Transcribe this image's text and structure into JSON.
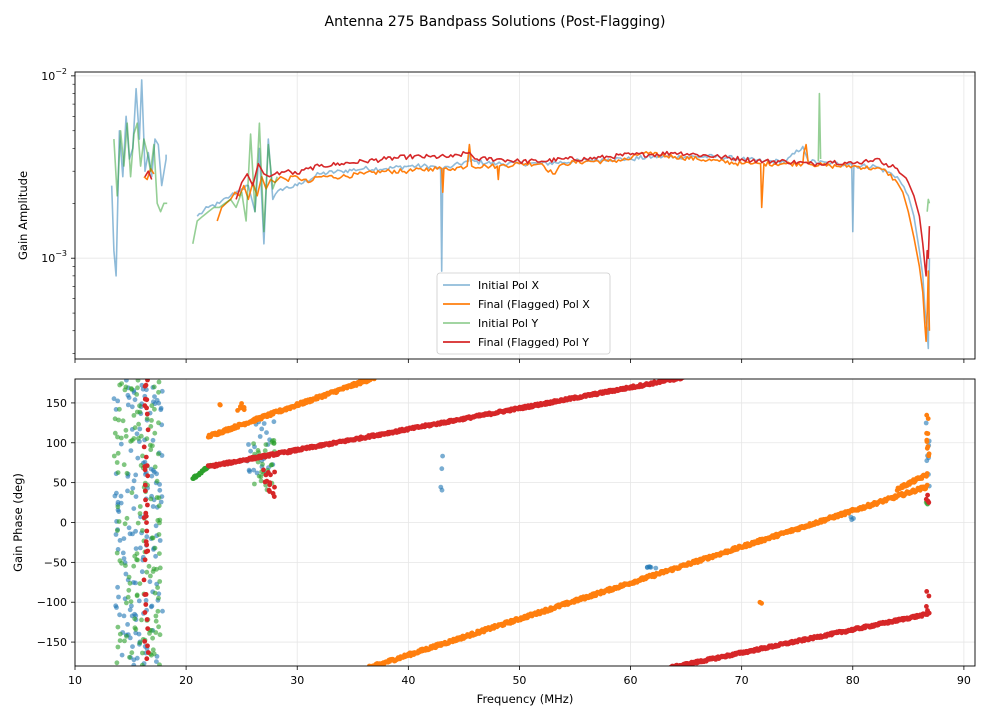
{
  "chart_data": {
    "type": "line",
    "title": "Antenna 275 Bandpass Solutions (Post-Flagging)",
    "xlabel": "Frequency (MHz)",
    "xlim": [
      10,
      91
    ],
    "xticks": [
      10,
      20,
      30,
      40,
      50,
      60,
      70,
      80,
      90
    ],
    "legend_position": "lower-center",
    "colors": {
      "initial_x": "#1f77b4",
      "final_x": "#ff7f0e",
      "initial_y": "#2ca02c",
      "final_y": "#d62728"
    },
    "amplitude": {
      "ylabel": "Gain Amplitude",
      "yscale": "log",
      "ylim": [
        0.00028,
        0.0105
      ],
      "yticks": [
        {
          "value": 0.001,
          "base": "10",
          "exp": "−3"
        },
        {
          "value": 0.01,
          "base": "10",
          "exp": "−2"
        }
      ],
      "series": [
        {
          "name": "Initial Pol X",
          "key": "initial_x",
          "alpha": 0.5,
          "x": [
            13.3,
            13.5,
            13.7,
            14.0,
            14.3,
            14.6,
            14.9,
            15.2,
            15.5,
            15.8,
            16.0,
            16.3,
            16.6,
            16.9,
            17.2,
            17.5,
            17.8,
            18.2,
            18.2,
            null,
            21.0,
            22.0,
            23.0,
            24.0,
            25.0,
            25.6,
            26.2,
            26.6,
            27.0,
            27.4,
            27.8,
            28.5,
            30,
            32,
            34,
            36,
            38,
            40,
            42,
            42.9,
            43,
            43.1,
            44,
            45.4,
            45.5,
            45.6,
            48,
            50,
            52,
            55,
            58,
            60,
            62,
            64,
            66,
            68,
            70,
            72,
            74,
            75.5,
            76,
            78,
            79.9,
            80,
            80.1,
            82,
            84,
            85,
            85.5,
            86,
            86.3,
            86.5,
            86.7,
            86.8,
            86.9
          ],
          "y": [
            0.0025,
            0.0011,
            0.0008,
            0.005,
            0.0028,
            0.006,
            0.0035,
            0.004,
            0.0085,
            0.0045,
            0.0095,
            0.003,
            0.0038,
            0.0028,
            0.0045,
            0.0042,
            0.0025,
            0.0035,
            0.0037,
            null,
            0.0017,
            0.0019,
            0.002,
            0.0022,
            0.0024,
            0.0025,
            0.0018,
            0.004,
            0.0012,
            0.0045,
            0.0021,
            0.0024,
            0.0025,
            0.0029,
            0.003,
            0.0031,
            0.0031,
            0.0032,
            0.0032,
            0.0031,
            0.00085,
            0.0031,
            0.0032,
            0.0034,
            0.0041,
            0.0034,
            0.0033,
            0.0033,
            0.0033,
            0.0034,
            0.0035,
            0.0035,
            0.0036,
            0.0036,
            0.0036,
            0.0036,
            0.0035,
            0.0034,
            0.0034,
            0.0041,
            0.0034,
            0.0033,
            0.0033,
            0.0014,
            0.0032,
            0.0032,
            0.0028,
            0.0022,
            0.0017,
            0.0011,
            0.0008,
            0.00052,
            0.0004,
            0.00032,
            0.001
          ]
        },
        {
          "name": "Final (Flagged) Pol X",
          "key": "final_x",
          "alpha": 1,
          "x": [
            16.2,
            16.5,
            16.8,
            17.1,
            null,
            22.8,
            23.2,
            23.6,
            24.0,
            24.4,
            24.8,
            25.2,
            25.6,
            26.0,
            26.4,
            26.8,
            27.2,
            27.6,
            28.0,
            28.5,
            29,
            30,
            31,
            32,
            34,
            36,
            38,
            40,
            42,
            43,
            43.1,
            43.2,
            44,
            45.3,
            45.5,
            45.7,
            47,
            48,
            48.1,
            48.2,
            50,
            52,
            53,
            54,
            56,
            58,
            60,
            61,
            62,
            64,
            66,
            68,
            70,
            71,
            71.7,
            71.8,
            72,
            74,
            75.5,
            75.6,
            75.8,
            76,
            78,
            80,
            82,
            83,
            84,
            84.5,
            85,
            85.5,
            86,
            86.3,
            86.5,
            86.6,
            86.7,
            86.8,
            86.9
          ],
          "y": [
            0.0028,
            0.0027,
            0.0031,
            0.0029,
            null,
            0.0016,
            0.0019,
            0.002,
            0.0021,
            0.0023,
            0.0022,
            0.0025,
            0.0021,
            0.0026,
            0.0022,
            0.0028,
            0.0024,
            0.0027,
            0.0026,
            0.0028,
            0.0027,
            0.0028,
            0.0026,
            0.0028,
            0.0028,
            0.0029,
            0.003,
            0.003,
            0.0031,
            0.0031,
            0.0023,
            0.0031,
            0.0031,
            0.0032,
            0.0042,
            0.0032,
            0.0032,
            0.0032,
            0.0027,
            0.0032,
            0.0033,
            0.0033,
            0.0029,
            0.0033,
            0.0034,
            0.0034,
            0.0035,
            0.0038,
            0.0037,
            0.0036,
            0.0035,
            0.0034,
            0.0033,
            0.0033,
            0.0033,
            0.0019,
            0.0033,
            0.0033,
            0.0033,
            0.0038,
            0.0042,
            0.0033,
            0.0032,
            0.0032,
            0.0031,
            0.003,
            0.0026,
            0.0023,
            0.0018,
            0.0013,
            0.0009,
            0.00065,
            0.00042,
            0.00035,
            0.0005,
            0.00085,
            0.0004
          ]
        },
        {
          "name": "Initial Pol Y",
          "key": "initial_y",
          "alpha": 0.5,
          "x": [
            13.5,
            13.8,
            14.1,
            14.4,
            14.7,
            15.0,
            15.3,
            15.6,
            15.9,
            16.2,
            16.5,
            16.8,
            17.1,
            17.4,
            17.7,
            18.0,
            18.3,
            null,
            20.6,
            21.0,
            21.5,
            22.0,
            22.5,
            23.0,
            23.5,
            24.0,
            24.5,
            25.0,
            25.4,
            25.8,
            26.2,
            26.6,
            27.0,
            27.4,
            27.8,
            28.2,
            null,
            76.9,
            77.0,
            77.1,
            null,
            86.7,
            86.8,
            86.9
          ],
          "y": [
            0.0045,
            0.0022,
            0.005,
            0.0032,
            0.0055,
            0.0028,
            0.0048,
            0.0055,
            0.0032,
            0.0045,
            0.0038,
            0.003,
            0.0042,
            0.002,
            0.0018,
            0.002,
            0.002,
            null,
            0.0012,
            0.0016,
            0.0017,
            0.0018,
            0.0019,
            0.0019,
            0.002,
            0.0021,
            0.0019,
            0.0023,
            0.0016,
            0.0048,
            0.0018,
            0.0055,
            0.0014,
            0.0042,
            0.0024,
            0.0028,
            null,
            0.0034,
            0.008,
            0.0035,
            null,
            0.0018,
            0.0021,
            0.002
          ]
        },
        {
          "name": "Final (Flagged) Pol Y",
          "key": "final_y",
          "alpha": 1,
          "x": [
            16.3,
            16.6,
            16.9,
            null,
            24.5,
            25.0,
            25.5,
            26.0,
            26.5,
            27.0,
            27.5,
            28.0,
            29,
            30,
            31,
            32,
            34,
            36,
            38,
            40,
            42,
            44,
            45.5,
            46,
            48,
            50,
            52,
            54,
            56,
            58,
            60,
            62,
            64,
            66,
            68,
            70,
            72,
            74,
            76,
            77,
            78,
            80,
            81,
            82,
            83,
            84,
            85,
            85.5,
            86,
            86.3,
            86.5,
            86.6,
            86.7,
            86.8,
            86.9
          ],
          "y": [
            0.0028,
            0.003,
            0.0027,
            null,
            0.0021,
            0.0026,
            0.0029,
            0.0025,
            0.0033,
            0.0029,
            0.0028,
            0.0029,
            0.003,
            0.0029,
            0.0031,
            0.0032,
            0.0033,
            0.0034,
            0.0035,
            0.0036,
            0.0036,
            0.0036,
            0.0038,
            0.0035,
            0.0035,
            0.0034,
            0.0034,
            0.0035,
            0.0035,
            0.0036,
            0.0037,
            0.0037,
            0.0038,
            0.0037,
            0.0036,
            0.0035,
            0.0034,
            0.0034,
            0.0033,
            0.0033,
            0.0034,
            0.0033,
            0.0034,
            0.0035,
            0.0033,
            0.0031,
            0.0026,
            0.0022,
            0.0017,
            0.0012,
            0.0009,
            0.0008,
            0.0011,
            0.001,
            0.0015
          ]
        }
      ]
    },
    "phase": {
      "ylabel": "Gain Phase (deg)",
      "ylim": [
        -180,
        180
      ],
      "yticks": [
        -150,
        -100,
        -50,
        0,
        50,
        100,
        150
      ],
      "series": [
        {
          "name": "Initial Pol X",
          "key": "initial_x",
          "segments": [
            {
              "x0": 13.5,
              "x1": 18.0,
              "y0": null,
              "y1": null,
              "scatter": true,
              "count": 160
            },
            {
              "x0": 25.5,
              "x1": 28.0,
              "y0": 60,
              "y1": 130,
              "scatter": true,
              "count": 25
            },
            {
              "x0": 42.9,
              "x1": 43.1,
              "y0": 36,
              "y1": 95,
              "scatter": true,
              "count": 4
            },
            {
              "x0": 61.5,
              "x1": 62.3,
              "y0": -58,
              "y1": -55,
              "scatter": true,
              "count": 6
            },
            {
              "x0": 79.8,
              "x1": 80.2,
              "y0": -8,
              "y1": 8,
              "scatter": true,
              "count": 3
            },
            {
              "x0": 86.6,
              "x1": 86.9,
              "y0": 25,
              "y1": 140,
              "scatter": true,
              "count": 8
            }
          ]
        },
        {
          "name": "Final (Flagged) Pol X",
          "key": "final_x",
          "segments": [
            {
              "x0": 22.0,
              "x1": 37.0,
              "y0": 108,
              "y1": 182,
              "noise": 4
            },
            {
              "x0": 36.5,
              "x1": 86.7,
              "y0": -182,
              "y1": 45,
              "noise": 4
            },
            {
              "x0": 84.0,
              "x1": 86.7,
              "y0": 42,
              "y1": 60,
              "noise": 4
            },
            {
              "x0": 23.0,
              "x1": 25.5,
              "y0": 140,
              "y1": 150,
              "scatter": true,
              "count": 8
            },
            {
              "x0": 71.6,
              "x1": 71.8,
              "y0": -102,
              "y1": -100,
              "scatter": true,
              "count": 2
            },
            {
              "x0": 86.6,
              "x1": 86.9,
              "y0": 60,
              "y1": 140,
              "scatter": true,
              "count": 10
            }
          ]
        },
        {
          "name": "Initial Pol Y",
          "key": "initial_y",
          "segments": [
            {
              "x0": 13.5,
              "x1": 17.7,
              "y0": null,
              "y1": null,
              "scatter": true,
              "count": 150
            },
            {
              "x0": 20.6,
              "x1": 22.2,
              "y0": 55,
              "y1": 72,
              "noise": 3
            },
            {
              "x0": 26.0,
              "x1": 28.0,
              "y0": 40,
              "y1": 105,
              "scatter": true,
              "count": 30
            },
            {
              "x0": 86.6,
              "x1": 86.9,
              "y0": 18,
              "y1": 28,
              "scatter": true,
              "count": 5
            }
          ]
        },
        {
          "name": "Final (Flagged) Pol Y",
          "key": "final_y",
          "segments": [
            {
              "x0": 22.0,
              "x1": 64.8,
              "y0": 70,
              "y1": 182,
              "noise": 3
            },
            {
              "x0": 63.6,
              "x1": 86.7,
              "y0": -182,
              "y1": -115,
              "noise": 3
            },
            {
              "x0": 16.2,
              "x1": 16.6,
              "y0": null,
              "y1": null,
              "scatter": true,
              "count": 40
            },
            {
              "x0": 26.8,
              "x1": 28.0,
              "y0": 30,
              "y1": 70,
              "scatter": true,
              "count": 14
            },
            {
              "x0": 86.6,
              "x1": 86.9,
              "y0": -115,
              "y1": -85,
              "scatter": true,
              "count": 6
            },
            {
              "x0": 86.6,
              "x1": 86.9,
              "y0": 25,
              "y1": 35,
              "scatter": true,
              "count": 4
            }
          ]
        }
      ]
    }
  }
}
